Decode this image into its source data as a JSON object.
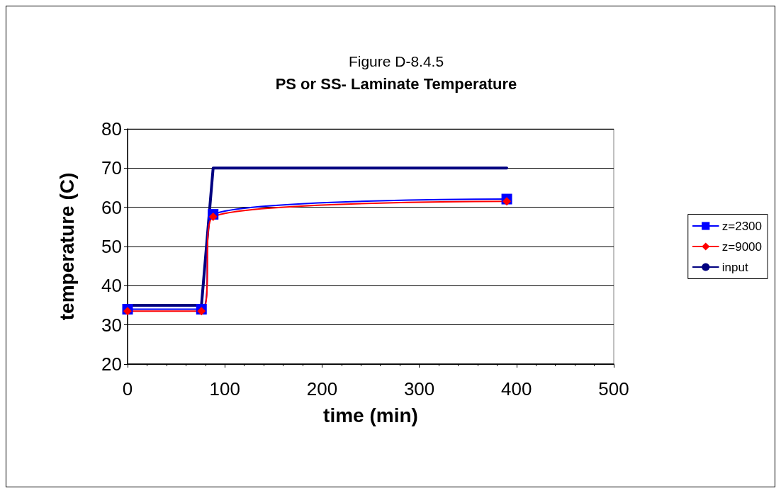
{
  "chart_data": {
    "type": "line",
    "title": "Figure D-8.4.5",
    "subtitle": "PS or SS- Laminate Temperature",
    "xlabel": "time (min)",
    "ylabel": "temperature (C)",
    "xlim": [
      0,
      500
    ],
    "xticks": [
      0,
      100,
      200,
      300,
      400,
      500
    ],
    "ylim": [
      20,
      80
    ],
    "yticks": [
      20,
      30,
      40,
      50,
      60,
      70,
      80
    ],
    "grid": "y",
    "legend": "right",
    "series": [
      {
        "name": "z=2300",
        "color": "#0000ff",
        "marker": "square",
        "x": [
          0,
          76,
          88,
          390
        ],
        "values": [
          34,
          34,
          58.2,
          62.1
        ]
      },
      {
        "name": "z=9000",
        "color": "#ff0000",
        "marker": "diamond",
        "x": [
          0,
          76,
          88,
          390
        ],
        "values": [
          33.5,
          33.5,
          57.6,
          61.5
        ]
      },
      {
        "name": "input",
        "color": "#000080",
        "marker": "none",
        "x": [
          0,
          76,
          88,
          390
        ],
        "values": [
          35,
          35,
          70,
          70
        ]
      }
    ]
  }
}
